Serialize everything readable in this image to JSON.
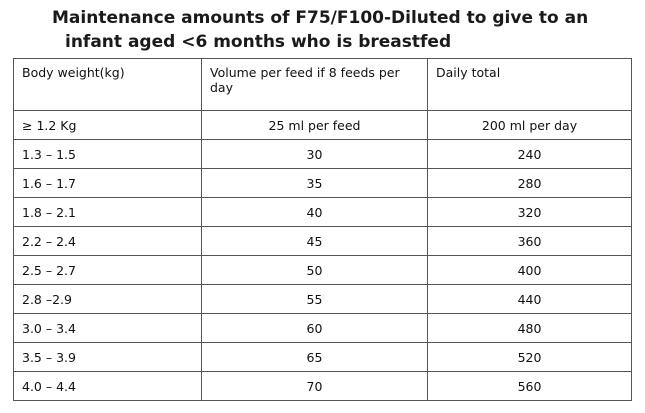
{
  "title": {
    "line1": "Maintenance amounts of F75/F100-Diluted to give to an",
    "line2": "infant aged <6 months who is breastfed"
  },
  "table": {
    "headers": [
      "Body weight(kg)",
      "Volume per feed if 8 feeds per day",
      "Daily total"
    ],
    "rows": [
      [
        "≥ 1.2 Kg",
        "25 ml per feed",
        "200 ml per day"
      ],
      [
        "1.3 – 1.5",
        "30",
        "240"
      ],
      [
        "1.6 – 1.7",
        "35",
        "280"
      ],
      [
        "1.8 – 2.1",
        "40",
        "320"
      ],
      [
        "2.2 – 2.4",
        "45",
        "360"
      ],
      [
        "2.5 – 2.7",
        "50",
        "400"
      ],
      [
        "2.8 –2.9",
        "55",
        "440"
      ],
      [
        "3.0 – 3.4",
        "60",
        "480"
      ],
      [
        "3.5 – 3.9",
        "65",
        "520"
      ],
      [
        "4.0 – 4.4",
        "70",
        "560"
      ]
    ]
  }
}
